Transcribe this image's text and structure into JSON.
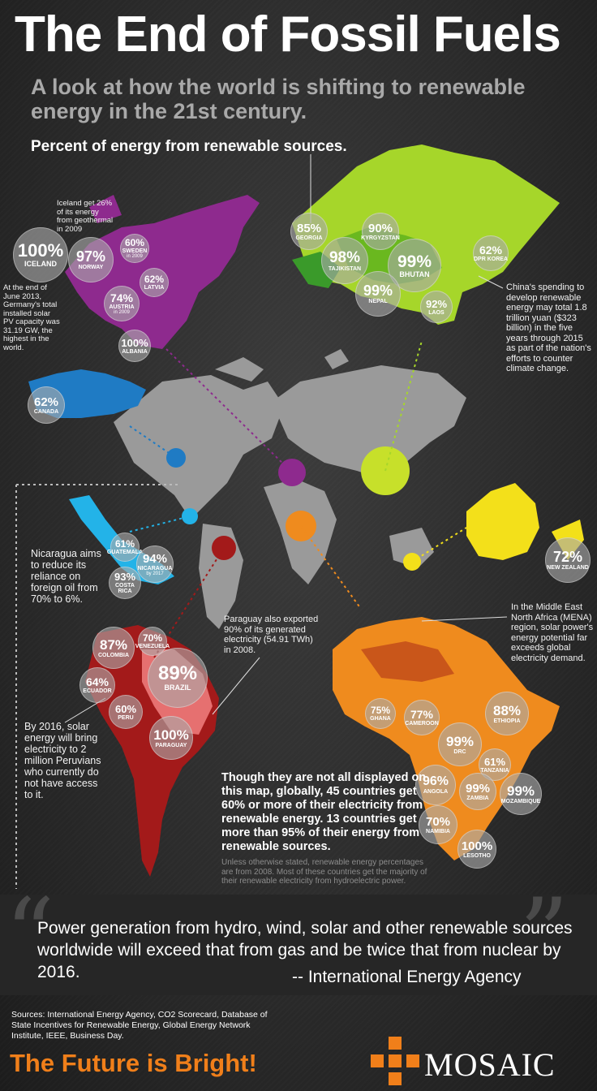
{
  "header": {
    "title": "The End of Fossil Fuels",
    "subtitle": "A look at how the world is shifting to renewable energy in the 21st century.",
    "section_label": "Percent of energy from renewable sources."
  },
  "colors": {
    "europe": "#8e2a8e",
    "asia": "#a6d62a",
    "north_america": "#1f7bc4",
    "central_america": "#23b3e8",
    "south_america": "#a31a1a",
    "africa": "#ef8b1e",
    "oceania": "#f3e01a",
    "world_map": "#9a9a9a",
    "accent_orange": "#f07f1a"
  },
  "bubbles": [
    {
      "id": "iceland",
      "value": "100%",
      "name": "ICELAND",
      "sub": ""
    },
    {
      "id": "norway",
      "value": "97%",
      "name": "NORWAY",
      "sub": ""
    },
    {
      "id": "sweden",
      "value": "60%",
      "name": "SWEDEN",
      "sub": "in 2009"
    },
    {
      "id": "latvia",
      "value": "62%",
      "name": "LATVIA",
      "sub": ""
    },
    {
      "id": "austria",
      "value": "74%",
      "name": "AUSTRIA",
      "sub": "in 2009"
    },
    {
      "id": "albania",
      "value": "100%",
      "name": "ALBANIA",
      "sub": ""
    },
    {
      "id": "georgia",
      "value": "85%",
      "name": "GEORGIA",
      "sub": ""
    },
    {
      "id": "kyrgyzstan",
      "value": "90%",
      "name": "KYRGYZSTAN",
      "sub": ""
    },
    {
      "id": "tajikistan",
      "value": "98%",
      "name": "TAJIKISTAN",
      "sub": ""
    },
    {
      "id": "bhutan",
      "value": "99%",
      "name": "BHUTAN",
      "sub": ""
    },
    {
      "id": "dprkorea",
      "value": "62%",
      "name": "DPR KOREA",
      "sub": ""
    },
    {
      "id": "nepal",
      "value": "99%",
      "name": "NEPAL",
      "sub": ""
    },
    {
      "id": "laos",
      "value": "92%",
      "name": "LAOS",
      "sub": ""
    },
    {
      "id": "canada",
      "value": "62%",
      "name": "CANADA",
      "sub": ""
    },
    {
      "id": "guatemala",
      "value": "61%",
      "name": "GUATEMALA",
      "sub": ""
    },
    {
      "id": "nicaragua",
      "value": "94%",
      "name": "NICARAGUA",
      "sub": "by 2017"
    },
    {
      "id": "costarica",
      "value": "93%",
      "name": "COSTA RICA",
      "sub": ""
    },
    {
      "id": "newzealand",
      "value": "72%",
      "name": "NEW ZEALAND",
      "sub": ""
    },
    {
      "id": "colombia",
      "value": "87%",
      "name": "COLOMBIA",
      "sub": ""
    },
    {
      "id": "venezuela",
      "value": "70%",
      "name": "VENEZUELA",
      "sub": ""
    },
    {
      "id": "ecuador",
      "value": "64%",
      "name": "ECUADOR",
      "sub": ""
    },
    {
      "id": "brazil",
      "value": "89%",
      "name": "BRAZIL",
      "sub": ""
    },
    {
      "id": "peru",
      "value": "60%",
      "name": "PERU",
      "sub": ""
    },
    {
      "id": "paraguay",
      "value": "100%",
      "name": "PARAGUAY",
      "sub": ""
    },
    {
      "id": "ghana",
      "value": "75%",
      "name": "GHANA",
      "sub": ""
    },
    {
      "id": "cameroon",
      "value": "77%",
      "name": "CAMEROON",
      "sub": ""
    },
    {
      "id": "ethiopia",
      "value": "88%",
      "name": "ETHIOPIA",
      "sub": ""
    },
    {
      "id": "drc",
      "value": "99%",
      "name": "DRC",
      "sub": ""
    },
    {
      "id": "tanzania",
      "value": "61%",
      "name": "TANZANIA",
      "sub": ""
    },
    {
      "id": "angola",
      "value": "96%",
      "name": "ANGOLA",
      "sub": ""
    },
    {
      "id": "zambia",
      "value": "99%",
      "name": "ZAMBIA",
      "sub": ""
    },
    {
      "id": "mozambique",
      "value": "99%",
      "name": "MOZAMBIQUE",
      "sub": ""
    },
    {
      "id": "namibia",
      "value": "70%",
      "name": "NAMIBIA",
      "sub": ""
    },
    {
      "id": "lesotho",
      "value": "100%",
      "name": "LESOTHO",
      "sub": ""
    }
  ],
  "notes": {
    "iceland": "Iceland get 26% of its energy from geothermal in 2009",
    "germany": "At the end of June 2013, Germany's total installed solar PV capacity was 31.19 GW, the highest in the world.",
    "china": "China's spending to develop renewable energy may total 1.8 trillion yuan ($323 billion) in the five years through 2015 as part of the nation's efforts to counter climate change.",
    "nicaragua": "Nicaragua aims to reduce its reliance on foreign oil from 70% to 6%.",
    "mena": "In the Middle East North Africa (MENA) region, solar power's energy potential far exceeds global electricity demand.",
    "paraguay": "Paraguay also exported 90% of its generated electricity (54.91 TWh) in 2008.",
    "peru": "By 2016, solar energy will bring electricity to 2 million Peruvians who currently do not have access to it."
  },
  "body": {
    "main": "Though they are not all displayed on this map, globally, 45 countries get 60% or more of their electricity from renewable energy. 13 countries get more than 95% of their energy from renewable sources.",
    "fine_print": "Unless otherwise stated, renewable energy percentages are from 2008. Most of these countries get the majority of their renewable electricity from hydroelectric power."
  },
  "quote": {
    "text": "Power generation from hydro, wind, solar and other renewable sources worldwide will exceed that from gas and be twice that from nuclear by 2016.",
    "attribution": "-- International Energy Agency"
  },
  "footer": {
    "sources": "Sources: International Energy Agency, CO2 Scorecard, Database of State Incentives for Renewable Energy, Global Energy Network Institute, IEEE, Business Day.",
    "tagline": "The Future is Bright!",
    "brand": "MOSAIC"
  }
}
